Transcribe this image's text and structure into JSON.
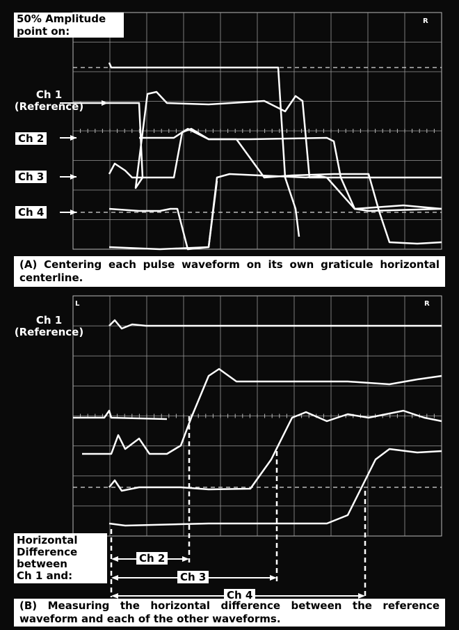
{
  "panel_a": {
    "heading": [
      "50% Amplitude",
      "point on:"
    ],
    "ch1": [
      "Ch 1",
      "(Reference)"
    ],
    "ch2": "Ch 2",
    "ch3": "Ch 3",
    "ch4": "Ch 4",
    "corner": "R",
    "caption": "(A) Centering each pulse waveform on its own graticule horizontal centerline."
  },
  "panel_b": {
    "ch1": [
      "Ch 1",
      "(Reference)"
    ],
    "corner_left": "L",
    "corner_right": "R",
    "difference_label": [
      "Horizontal",
      "Difference",
      "between",
      "Ch 1 and:"
    ],
    "arrows": [
      "Ch 2",
      "Ch 3",
      "Ch 4"
    ],
    "caption": "(B) Measuring the horizontal difference between the reference waveform and each of the other waveforms."
  }
}
